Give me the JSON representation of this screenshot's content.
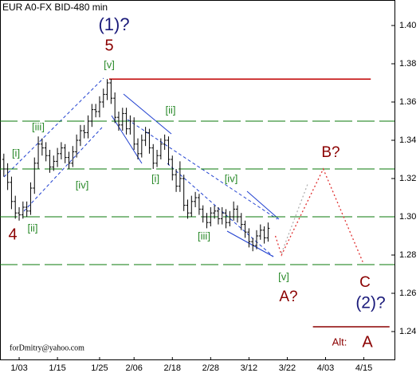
{
  "chart_data": {
    "type": "ohlc",
    "title": "EUR A0-FX BID-480 min",
    "credit": "forDmitry@yahoo.com",
    "xlim": [
      0,
      103
    ],
    "ylim": [
      1.225,
      1.4125
    ],
    "yticks": [
      {
        "value": 1.4,
        "label": "1.40"
      },
      1.38,
      1.36,
      1.34,
      1.32,
      {
        "value": 1.3,
        "label": "1.30"
      },
      1.28,
      1.26,
      1.24
    ],
    "xticks": [
      {
        "value": 5,
        "label": "1/03"
      },
      {
        "value": 15,
        "label": "1/15"
      },
      {
        "value": 26,
        "label": "1/25"
      },
      {
        "value": 35,
        "label": "2/06"
      },
      {
        "value": 45,
        "label": "2/18"
      },
      {
        "value": 55,
        "label": "2/28"
      },
      {
        "value": 65,
        "label": "3/12"
      },
      {
        "value": 75,
        "label": "3/22"
      },
      {
        "value": 85,
        "label": "4/03"
      },
      {
        "value": 95,
        "label": "4/15"
      }
    ],
    "color": "#000000",
    "x": [
      1,
      2,
      3,
      4,
      5,
      6,
      7,
      8,
      9,
      10,
      11,
      12,
      13,
      14,
      15,
      16,
      17,
      18,
      19,
      20,
      21,
      22,
      23,
      24,
      25,
      26,
      27,
      28,
      29,
      30,
      31,
      32,
      33,
      34,
      35,
      36,
      37,
      38,
      39,
      40,
      41,
      42,
      43,
      44,
      45,
      46,
      47,
      48,
      49,
      50,
      51,
      52,
      53,
      54,
      55,
      56,
      57,
      58,
      59,
      60,
      61,
      62,
      63,
      64,
      65,
      66,
      67,
      68,
      69,
      70
    ],
    "open": [
      1.33,
      1.325,
      1.318,
      1.308,
      1.302,
      1.301,
      1.305,
      1.303,
      1.315,
      1.328,
      1.338,
      1.336,
      1.332,
      1.326,
      1.329,
      1.333,
      1.336,
      1.331,
      1.328,
      1.334,
      1.34,
      1.345,
      1.344,
      1.35,
      1.356,
      1.355,
      1.36,
      1.364,
      1.37,
      1.362,
      1.352,
      1.348,
      1.354,
      1.346,
      1.35,
      1.338,
      1.333,
      1.34,
      1.344,
      1.336,
      1.328,
      1.332,
      1.338,
      1.34,
      1.33,
      1.322,
      1.316,
      1.32,
      1.306,
      1.302,
      1.308,
      1.31,
      1.304,
      1.3,
      1.297,
      1.302,
      1.303,
      1.299,
      1.302,
      1.297,
      1.3,
      1.304,
      1.3,
      1.296,
      1.292,
      1.287,
      1.285,
      1.29,
      1.293,
      1.289
    ],
    "high": [
      1.333,
      1.328,
      1.321,
      1.311,
      1.305,
      1.308,
      1.308,
      1.318,
      1.331,
      1.342,
      1.341,
      1.339,
      1.335,
      1.332,
      1.336,
      1.339,
      1.338,
      1.334,
      1.337,
      1.343,
      1.348,
      1.348,
      1.353,
      1.359,
      1.359,
      1.363,
      1.367,
      1.372,
      1.372,
      1.365,
      1.355,
      1.357,
      1.357,
      1.353,
      1.352,
      1.341,
      1.343,
      1.347,
      1.346,
      1.338,
      1.335,
      1.341,
      1.343,
      1.342,
      1.332,
      1.325,
      1.329,
      1.322,
      1.309,
      1.311,
      1.313,
      1.312,
      1.306,
      1.302,
      1.305,
      1.306,
      1.305,
      1.305,
      1.304,
      1.303,
      1.308,
      1.306,
      1.302,
      1.298,
      1.294,
      1.289,
      1.293,
      1.296,
      1.295,
      1.297
    ],
    "low": [
      1.321,
      1.314,
      1.304,
      1.299,
      1.298,
      1.299,
      1.3,
      1.301,
      1.312,
      1.325,
      1.332,
      1.329,
      1.323,
      1.324,
      1.326,
      1.33,
      1.328,
      1.325,
      1.326,
      1.331,
      1.337,
      1.341,
      1.341,
      1.347,
      1.352,
      1.352,
      1.357,
      1.361,
      1.359,
      1.349,
      1.345,
      1.345,
      1.343,
      1.343,
      1.335,
      1.33,
      1.331,
      1.337,
      1.333,
      1.325,
      1.326,
      1.33,
      1.335,
      1.327,
      1.319,
      1.313,
      1.313,
      1.303,
      1.299,
      1.3,
      1.305,
      1.301,
      1.297,
      1.294,
      1.295,
      1.299,
      1.296,
      1.296,
      1.294,
      1.295,
      1.298,
      1.297,
      1.293,
      1.289,
      1.284,
      1.282,
      1.283,
      1.288,
      1.286,
      1.287
    ],
    "close": [
      1.325,
      1.318,
      1.308,
      1.302,
      1.301,
      1.305,
      1.303,
      1.315,
      1.328,
      1.338,
      1.336,
      1.332,
      1.326,
      1.329,
      1.333,
      1.336,
      1.331,
      1.328,
      1.334,
      1.34,
      1.345,
      1.344,
      1.35,
      1.356,
      1.355,
      1.36,
      1.364,
      1.37,
      1.362,
      1.352,
      1.348,
      1.354,
      1.346,
      1.35,
      1.338,
      1.333,
      1.34,
      1.344,
      1.336,
      1.328,
      1.332,
      1.338,
      1.34,
      1.33,
      1.322,
      1.316,
      1.32,
      1.306,
      1.302,
      1.308,
      1.31,
      1.304,
      1.3,
      1.297,
      1.302,
      1.303,
      1.299,
      1.302,
      1.297,
      1.3,
      1.304,
      1.3,
      1.296,
      1.292,
      1.287,
      1.285,
      1.29,
      1.293,
      1.289,
      1.294
    ],
    "levels": {
      "color": "#0a7a0a",
      "values": [
        1.35,
        1.325,
        1.3,
        1.275
      ]
    },
    "horizontal_lines": [
      {
        "value": 1.372,
        "start": 28.5,
        "end": 96.8,
        "color": "#c00000"
      },
      {
        "value": 1.2425,
        "start": 81.7,
        "end": 101.7,
        "color": "#8b0000"
      }
    ],
    "forecast": [
      {
        "color": "#e03030",
        "x": [
          71.9,
          73.5,
          84.4,
          94.8
        ],
        "values": [
          1.29,
          1.28,
          1.325,
          1.276
        ]
      },
      {
        "color": "#b0b0b0",
        "x": [
          73.5,
          80.5
        ],
        "values": [
          1.281,
          1.318
        ]
      }
    ],
    "annotations": [
      "(1)?",
      "5",
      "[v]",
      "[iii]",
      "[i]",
      "[iv]",
      "[ii]",
      "4",
      "[ii]",
      "[i]",
      "[iv]",
      "[iii]",
      "[v]",
      "A?",
      "B?",
      "C",
      "(2)?",
      "Alt:",
      "A"
    ]
  }
}
